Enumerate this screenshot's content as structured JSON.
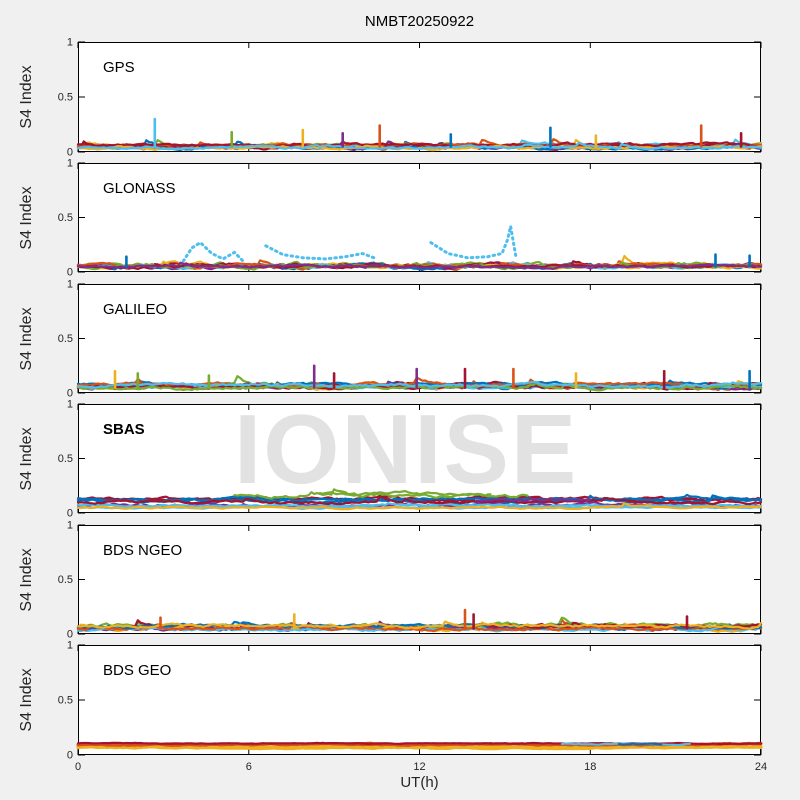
{
  "figure": {
    "background": "#f0f0f0",
    "plot_background": "#ffffff",
    "axis_color": "#000000",
    "tick_color": "#262626",
    "watermark_color": "#e2e2e2"
  },
  "chart_data": {
    "type": "scatter",
    "title": "NMBT20250922",
    "xlabel": "UT(h)",
    "ylabel": "S4 Index",
    "watermark": "IONISE",
    "xlim": [
      0,
      24
    ],
    "ylim": [
      0,
      1
    ],
    "xticks": [
      0,
      6,
      12,
      18,
      24
    ],
    "yticks": [
      0,
      0.5,
      1
    ],
    "ytick_labels": [
      "0",
      "0.5",
      "1"
    ],
    "grid": false,
    "legend": "none",
    "palette": {
      "blue": "#0072BD",
      "orange": "#D95319",
      "yellow": "#EDB120",
      "purple": "#7E2F8E",
      "green": "#77AC30",
      "cyan": "#4DBEEE",
      "red": "#A2142F"
    },
    "panels": [
      {
        "label": "GPS",
        "bold": false,
        "band_range": [
          0,
          0.12
        ],
        "series": [
          [
            "blue",
            0.05,
            0.035
          ],
          [
            "orange",
            0.05,
            0.04
          ],
          [
            "yellow",
            0.055,
            0.04
          ],
          [
            "purple",
            0.04,
            0.03
          ],
          [
            "green",
            0.05,
            0.035
          ],
          [
            "cyan",
            0.055,
            0.04
          ],
          [
            "red",
            0.05,
            0.04
          ],
          [
            "blue",
            0.04,
            0.028
          ],
          [
            "orange",
            0.06,
            0.032
          ],
          [
            "red",
            0.065,
            0.03
          ],
          [
            "yellow",
            0.04,
            0.028
          ],
          [
            "cyan",
            0.04,
            0.025
          ]
        ],
        "spikes": [
          [
            2.7,
            0.3,
            "cyan"
          ],
          [
            5.4,
            0.18,
            "green"
          ],
          [
            7.9,
            0.2,
            "yellow"
          ],
          [
            9.3,
            0.17,
            "purple"
          ],
          [
            10.6,
            0.24,
            "orange"
          ],
          [
            13.1,
            0.16,
            "blue"
          ],
          [
            16.6,
            0.22,
            "blue"
          ],
          [
            18.2,
            0.15,
            "yellow"
          ],
          [
            21.9,
            0.24,
            "orange"
          ],
          [
            23.3,
            0.17,
            "red"
          ]
        ],
        "arcs": []
      },
      {
        "label": "GLONASS",
        "bold": false,
        "band_range": [
          0,
          0.42
        ],
        "series": [
          [
            "orange",
            0.05,
            0.04
          ],
          [
            "yellow",
            0.06,
            0.045
          ],
          [
            "purple",
            0.045,
            0.035
          ],
          [
            "green",
            0.06,
            0.045
          ],
          [
            "blue",
            0.05,
            0.04
          ],
          [
            "red",
            0.06,
            0.04
          ],
          [
            "cyan",
            0.05,
            0.03
          ],
          [
            "yellow",
            0.05,
            0.03
          ],
          [
            "orange",
            0.06,
            0.03
          ],
          [
            "green",
            0.05,
            0.03
          ],
          [
            "red",
            0.05,
            0.03
          ],
          [
            "purple",
            0.05,
            0.025
          ]
        ],
        "spikes": [
          [
            1.7,
            0.14,
            "blue"
          ],
          [
            22.4,
            0.16,
            "blue"
          ],
          [
            23.6,
            0.15,
            "blue"
          ]
        ],
        "arcs": [
          {
            "color": "cyan",
            "pts": [
              [
                3.7,
                0.1
              ],
              [
                4.0,
                0.22
              ],
              [
                4.3,
                0.27
              ],
              [
                4.7,
                0.17
              ],
              [
                5.1,
                0.12
              ],
              [
                5.5,
                0.18
              ],
              [
                5.8,
                0.1
              ]
            ]
          },
          {
            "color": "cyan",
            "pts": [
              [
                6.6,
                0.24
              ],
              [
                7.2,
                0.16
              ],
              [
                7.9,
                0.13
              ],
              [
                8.7,
                0.12
              ],
              [
                9.4,
                0.14
              ],
              [
                10.0,
                0.17
              ],
              [
                10.4,
                0.13
              ]
            ]
          },
          {
            "color": "cyan",
            "pts": [
              [
                12.4,
                0.27
              ],
              [
                13.0,
                0.17
              ],
              [
                13.7,
                0.13
              ],
              [
                14.4,
                0.14
              ],
              [
                14.9,
                0.17
              ],
              [
                15.1,
                0.3
              ],
              [
                15.2,
                0.42
              ],
              [
                15.4,
                0.12
              ]
            ]
          }
        ]
      },
      {
        "label": "GALILEO",
        "bold": false,
        "band_range": [
          0,
          0.27
        ],
        "series": [
          [
            "green",
            0.07,
            0.04
          ],
          [
            "orange",
            0.06,
            0.04
          ],
          [
            "red",
            0.07,
            0.045
          ],
          [
            "purple",
            0.06,
            0.04
          ],
          [
            "blue",
            0.06,
            0.04
          ],
          [
            "yellow",
            0.06,
            0.04
          ],
          [
            "cyan",
            0.05,
            0.015
          ],
          [
            "blue",
            0.08,
            0.03
          ],
          [
            "orange",
            0.08,
            0.035
          ],
          [
            "red",
            0.05,
            0.03
          ],
          [
            "green",
            0.05,
            0.03
          ],
          [
            "cyan",
            0.07,
            0.03
          ]
        ],
        "spikes": [
          [
            1.3,
            0.2,
            "yellow"
          ],
          [
            2.1,
            0.18,
            "green"
          ],
          [
            4.6,
            0.16,
            "green"
          ],
          [
            8.3,
            0.25,
            "purple"
          ],
          [
            9.0,
            0.18,
            "red"
          ],
          [
            11.9,
            0.22,
            "purple"
          ],
          [
            13.6,
            0.22,
            "red"
          ],
          [
            15.3,
            0.22,
            "orange"
          ],
          [
            17.5,
            0.18,
            "yellow"
          ],
          [
            20.6,
            0.2,
            "red"
          ],
          [
            23.6,
            0.2,
            "blue"
          ]
        ],
        "arcs": []
      },
      {
        "label": "SBAS",
        "bold": true,
        "band_range": [
          0,
          0.25
        ],
        "series": [
          [
            "red",
            0.12,
            0.035
          ],
          [
            "red",
            0.13,
            0.03
          ],
          [
            "blue",
            0.11,
            0.03
          ],
          [
            "blue",
            0.13,
            0.025
          ],
          [
            "purple",
            0.07,
            0.03
          ],
          [
            "cyan",
            0.05,
            0.015
          ],
          [
            "cyan",
            0.07,
            0.02
          ],
          [
            "yellow",
            0.05,
            0.02
          ],
          [
            "green",
            0.16,
            0.04,
            5.5,
            15.8
          ],
          [
            "green",
            0.18,
            0.03,
            8.5,
            14.5
          ],
          [
            "red",
            0.1,
            0.025
          ],
          [
            "purple",
            0.12,
            0.02,
            14,
            18
          ]
        ],
        "spikes": [],
        "arcs": []
      },
      {
        "label": "BDS NGEO",
        "bold": false,
        "band_range": [
          0,
          0.22
        ],
        "series": [
          [
            "green",
            0.07,
            0.045
          ],
          [
            "orange",
            0.06,
            0.045
          ],
          [
            "blue",
            0.05,
            0.04
          ],
          [
            "red",
            0.06,
            0.04
          ],
          [
            "yellow",
            0.05,
            0.04
          ],
          [
            "purple",
            0.05,
            0.035
          ],
          [
            "cyan",
            0.04,
            0.03
          ],
          [
            "green",
            0.08,
            0.04,
            12,
            24
          ],
          [
            "orange",
            0.05,
            0.03
          ],
          [
            "blue",
            0.07,
            0.03
          ],
          [
            "red",
            0.08,
            0.03,
            14,
            24
          ],
          [
            "yellow",
            0.07,
            0.03
          ]
        ],
        "spikes": [
          [
            2.9,
            0.15,
            "orange"
          ],
          [
            7.6,
            0.18,
            "yellow"
          ],
          [
            13.6,
            0.22,
            "orange"
          ],
          [
            13.9,
            0.18,
            "red"
          ],
          [
            21.4,
            0.16,
            "red"
          ]
        ],
        "arcs": []
      },
      {
        "label": "BDS GEO",
        "bold": false,
        "band_range": [
          0.06,
          0.11
        ],
        "series": [
          [
            "yellow",
            0.065,
            0.012,
            0,
            24,
            3
          ],
          [
            "yellow",
            0.075,
            0.01,
            0,
            24,
            3
          ],
          [
            "orange",
            0.095,
            0.014,
            0,
            24,
            3
          ],
          [
            "orange",
            0.1,
            0.01,
            0,
            24,
            2.5
          ],
          [
            "red",
            0.105,
            0.008
          ],
          [
            "cyan",
            0.1,
            0.012,
            17,
            21.5,
            2
          ],
          [
            "blue",
            0.1,
            0.01,
            19,
            20.5,
            2
          ]
        ],
        "spikes": [],
        "arcs": []
      }
    ]
  }
}
